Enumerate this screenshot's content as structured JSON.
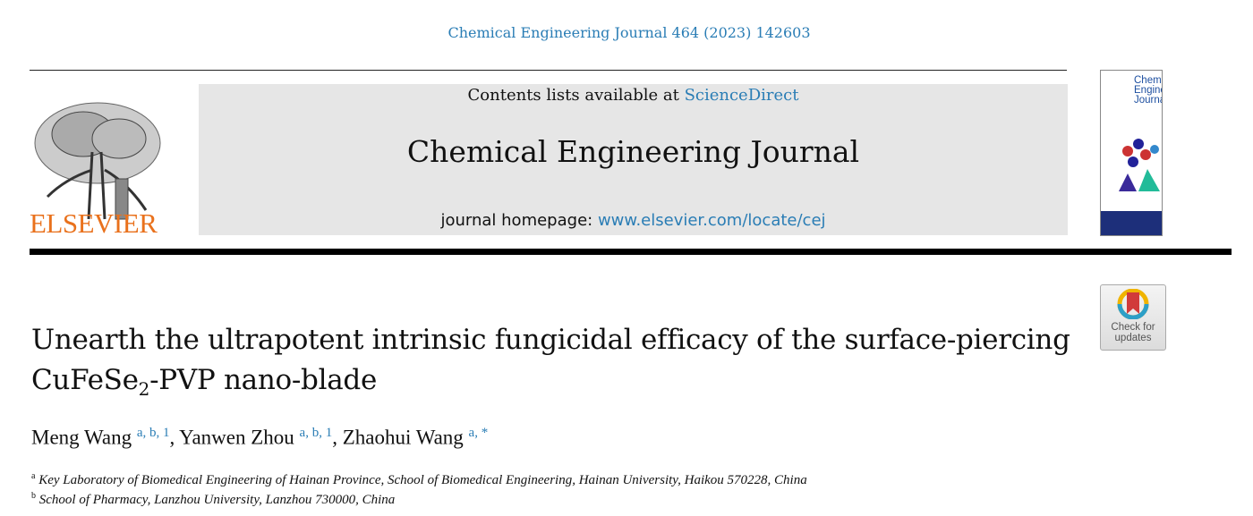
{
  "citation": "Chemical Engineering Journal 464 (2023) 142603",
  "publisher": {
    "name": "ELSEVIER",
    "color": "#e9711c"
  },
  "masthead": {
    "contents_prefix": "Contents lists available at ",
    "sciencedirect": "ScienceDirect",
    "journal_title": "Chemical Engineering Journal",
    "homepage_prefix": "journal homepage: ",
    "homepage_url": "www.elsevier.com/locate/cej",
    "link_color": "#2a7db5"
  },
  "cover": {
    "title_lines": [
      "Chemical",
      "Engineering",
      "Journal"
    ]
  },
  "badge": {
    "line1": "Check for",
    "line2": "updates"
  },
  "article": {
    "title_line1": "Unearth the ultrapotent intrinsic fungicidal efficacy of the surface-piercing",
    "title_line2_pre": "CuFeSe",
    "title_line2_sub": "2",
    "title_line2_post": "-PVP nano-blade"
  },
  "authors": [
    {
      "name": "Meng Wang",
      "sup": "a, b, 1"
    },
    {
      "name": "Yanwen Zhou",
      "sup": "a, b, 1"
    },
    {
      "name": "Zhaohui Wang",
      "sup": "a, *"
    }
  ],
  "affiliations": [
    {
      "key": "a",
      "text": "Key Laboratory of Biomedical Engineering of Hainan Province, School of Biomedical Engineering, Hainan University, Haikou 570228, China"
    },
    {
      "key": "b",
      "text": "School of Pharmacy, Lanzhou University, Lanzhou 730000, China"
    }
  ]
}
